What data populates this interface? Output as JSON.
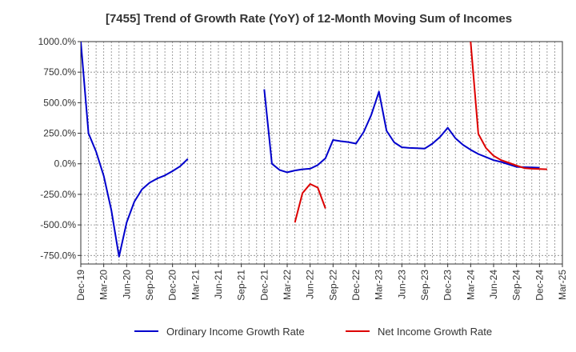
{
  "chart_data": {
    "type": "line",
    "title": "[7455]  Trend of Growth Rate (YoY) of 12-Month Moving Sum of Incomes",
    "xlabel": "",
    "ylabel": "",
    "x_tick_labels": [
      "Dec-19",
      "Mar-20",
      "Jun-20",
      "Sep-20",
      "Dec-20",
      "Mar-21",
      "Jun-21",
      "Sep-21",
      "Dec-21",
      "Mar-22",
      "Jun-22",
      "Sep-22",
      "Dec-22",
      "Mar-23",
      "Jun-23",
      "Sep-23",
      "Dec-23",
      "Mar-24",
      "Jun-24",
      "Sep-24",
      "Dec-24",
      "Mar-25"
    ],
    "y_ticks": [
      1000,
      750,
      500,
      250,
      0,
      -250,
      -500,
      -750
    ],
    "y_tick_labels": [
      "1000.0%",
      "750.0%",
      "500.0%",
      "250.0%",
      "0.0%",
      "-250.0%",
      "-500.0%",
      "-750.0%"
    ],
    "ylim": [
      -820,
      1000
    ],
    "grid": true,
    "legend_position": "bottom",
    "series": [
      {
        "name": "Ordinary Income Growth Rate",
        "color": "#0000cc",
        "points": [
          [
            "Dec-19",
            1000
          ],
          [
            "Jan-20",
            250
          ],
          [
            "Feb-20",
            100
          ],
          [
            "Mar-20",
            -100
          ],
          [
            "Apr-20",
            -380
          ],
          [
            "May-20",
            -760
          ],
          [
            "Jun-20",
            -480
          ],
          [
            "Jul-20",
            -310
          ],
          [
            "Aug-20",
            -210
          ],
          [
            "Sep-20",
            -155
          ],
          [
            "Oct-20",
            -120
          ],
          [
            "Nov-20",
            -95
          ],
          [
            "Dec-20",
            -60
          ],
          [
            "Jan-21",
            -20
          ],
          [
            "Feb-21",
            40
          ],
          [
            "Dec-21",
            610
          ],
          [
            "Jan-22",
            0
          ],
          [
            "Feb-22",
            -50
          ],
          [
            "Mar-22",
            -70
          ],
          [
            "Apr-22",
            -55
          ],
          [
            "May-22",
            -45
          ],
          [
            "Jun-22",
            -40
          ],
          [
            "Jul-22",
            -10
          ],
          [
            "Aug-22",
            45
          ],
          [
            "Sep-22",
            195
          ],
          [
            "Oct-22",
            185
          ],
          [
            "Nov-22",
            178
          ],
          [
            "Dec-22",
            165
          ],
          [
            "Jan-23",
            260
          ],
          [
            "Feb-23",
            400
          ],
          [
            "Mar-23",
            590
          ],
          [
            "Apr-23",
            270
          ],
          [
            "May-23",
            175
          ],
          [
            "Jun-23",
            135
          ],
          [
            "Jul-23",
            130
          ],
          [
            "Aug-23",
            128
          ],
          [
            "Sep-23",
            125
          ],
          [
            "Oct-23",
            165
          ],
          [
            "Nov-23",
            220
          ],
          [
            "Dec-23",
            295
          ],
          [
            "Jan-24",
            210
          ],
          [
            "Feb-24",
            155
          ],
          [
            "Mar-24",
            115
          ],
          [
            "Apr-24",
            80
          ],
          [
            "May-24",
            55
          ],
          [
            "Jun-24",
            30
          ],
          [
            "Jul-24",
            15
          ],
          [
            "Aug-24",
            -5
          ],
          [
            "Sep-24",
            -25
          ],
          [
            "Oct-24",
            -28
          ],
          [
            "Nov-24",
            -30
          ],
          [
            "Dec-24",
            -32
          ]
        ]
      },
      {
        "name": "Net Income Growth Rate",
        "color": "#dd0000",
        "points": [
          [
            "Apr-22",
            -480
          ],
          [
            "May-22",
            -240
          ],
          [
            "Jun-22",
            -165
          ],
          [
            "Jul-22",
            -195
          ],
          [
            "Aug-22",
            -365
          ],
          [
            "Mar-24",
            1000
          ],
          [
            "Apr-24",
            245
          ],
          [
            "May-24",
            130
          ],
          [
            "Jun-24",
            65
          ],
          [
            "Jul-24",
            30
          ],
          [
            "Aug-24",
            8
          ],
          [
            "Sep-24",
            -15
          ],
          [
            "Oct-24",
            -35
          ],
          [
            "Nov-24",
            -40
          ],
          [
            "Dec-24",
            -42
          ],
          [
            "Jan-25",
            -45
          ]
        ]
      }
    ]
  }
}
